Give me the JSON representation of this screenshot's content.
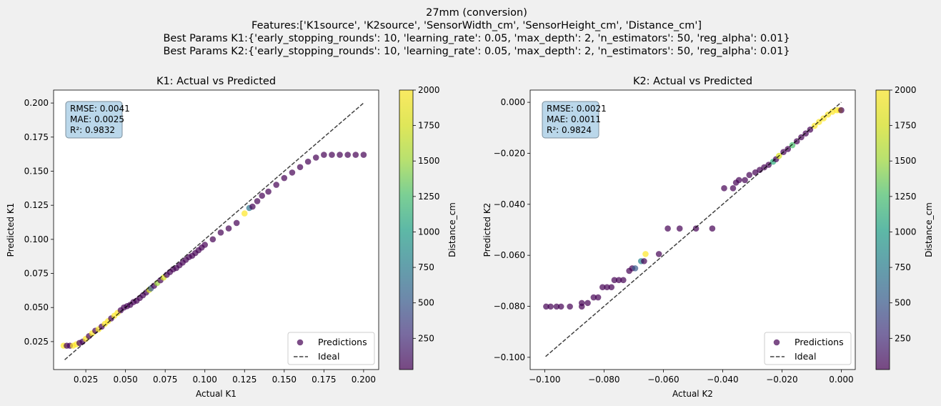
{
  "figure": {
    "suptitle_lines": [
      "27mm (conversion)",
      "Features:['K1source', 'K2source', 'SensorWidth_cm', 'SensorHeight_cm', 'Distance_cm']",
      "Best Params K1:{'early_stopping_rounds': 10, 'learning_rate': 0.05, 'max_depth': 2, 'n_estimators': 50, 'reg_alpha': 0.01}",
      "Best Params K2:{'early_stopping_rounds': 10, 'learning_rate': 0.05, 'max_depth': 2, 'n_estimators': 50, 'reg_alpha': 0.01}"
    ],
    "background": "#f0f0f0"
  },
  "chart_data": [
    {
      "type": "scatter",
      "title": "K1: Actual vs Predicted",
      "xlabel": "Actual K1",
      "ylabel": "Predicted K1",
      "xlim": [
        0.0047,
        0.2095
      ],
      "ylim": [
        0.0045,
        0.2095
      ],
      "xticks": [
        0.025,
        0.05,
        0.075,
        0.1,
        0.125,
        0.15,
        0.175,
        0.2
      ],
      "xtick_labels": [
        "0.025",
        "0.050",
        "0.075",
        "0.100",
        "0.125",
        "0.150",
        "0.175",
        "0.200"
      ],
      "yticks": [
        0.025,
        0.05,
        0.075,
        0.1,
        0.125,
        0.15,
        0.175,
        0.2
      ],
      "ytick_labels": [
        "0.025",
        "0.050",
        "0.075",
        "0.100",
        "0.125",
        "0.150",
        "0.175",
        "0.200"
      ],
      "metrics": [
        "RMSE: 0.0041",
        "MAE: 0.0025",
        "R²: 0.9832"
      ],
      "legend": {
        "position": "lower-right",
        "entries": [
          "Predictions",
          "Ideal"
        ]
      },
      "ideal_line": {
        "x": [
          0.0117,
          0.2
        ],
        "y": [
          0.0117,
          0.2
        ]
      },
      "colorbar": {
        "label": "Distance_cm",
        "range": [
          30,
          2000
        ],
        "ticks": [
          250,
          500,
          750,
          1000,
          1250,
          1500,
          1750,
          2000
        ],
        "colormap": "viridis"
      },
      "series": [
        {
          "name": "Predictions",
          "points": [
            [
              0.011,
              0.022,
              2000
            ],
            [
              0.013,
              0.022,
              30
            ],
            [
              0.015,
              0.022,
              30
            ],
            [
              0.017,
              0.022,
              2000
            ],
            [
              0.019,
              0.023,
              2000
            ],
            [
              0.021,
              0.024,
              30
            ],
            [
              0.023,
              0.025,
              30
            ],
            [
              0.025,
              0.027,
              2000
            ],
            [
              0.027,
              0.029,
              30
            ],
            [
              0.029,
              0.031,
              2000
            ],
            [
              0.031,
              0.033,
              30
            ],
            [
              0.033,
              0.034,
              2000
            ],
            [
              0.035,
              0.036,
              30
            ],
            [
              0.037,
              0.038,
              2000
            ],
            [
              0.039,
              0.04,
              2000
            ],
            [
              0.041,
              0.042,
              30
            ],
            [
              0.043,
              0.044,
              2000
            ],
            [
              0.045,
              0.046,
              2000
            ],
            [
              0.047,
              0.048,
              30
            ],
            [
              0.049,
              0.05,
              30
            ],
            [
              0.051,
              0.051,
              30
            ],
            [
              0.053,
              0.052,
              30
            ],
            [
              0.055,
              0.054,
              30
            ],
            [
              0.057,
              0.055,
              30
            ],
            [
              0.059,
              0.057,
              30
            ],
            [
              0.061,
              0.059,
              30
            ],
            [
              0.063,
              0.061,
              30
            ],
            [
              0.065,
              0.063,
              1750
            ],
            [
              0.066,
              0.064,
              500
            ],
            [
              0.068,
              0.066,
              30
            ],
            [
              0.07,
              0.068,
              1500
            ],
            [
              0.072,
              0.07,
              30
            ],
            [
              0.074,
              0.072,
              1750
            ],
            [
              0.076,
              0.074,
              30
            ],
            [
              0.078,
              0.076,
              30
            ],
            [
              0.08,
              0.078,
              30
            ],
            [
              0.082,
              0.079,
              30
            ],
            [
              0.084,
              0.081,
              30
            ],
            [
              0.086,
              0.083,
              30
            ],
            [
              0.088,
              0.085,
              30
            ],
            [
              0.09,
              0.087,
              30
            ],
            [
              0.092,
              0.088,
              30
            ],
            [
              0.094,
              0.09,
              30
            ],
            [
              0.096,
              0.092,
              30
            ],
            [
              0.098,
              0.094,
              30
            ],
            [
              0.1,
              0.096,
              30
            ],
            [
              0.105,
              0.1,
              30
            ],
            [
              0.11,
              0.105,
              30
            ],
            [
              0.115,
              0.108,
              30
            ],
            [
              0.12,
              0.112,
              30
            ],
            [
              0.125,
              0.119,
              2000
            ],
            [
              0.128,
              0.123,
              700
            ],
            [
              0.13,
              0.124,
              30
            ],
            [
              0.133,
              0.128,
              30
            ],
            [
              0.136,
              0.132,
              30
            ],
            [
              0.14,
              0.135,
              30
            ],
            [
              0.145,
              0.14,
              30
            ],
            [
              0.15,
              0.145,
              30
            ],
            [
              0.155,
              0.149,
              30
            ],
            [
              0.16,
              0.153,
              30
            ],
            [
              0.165,
              0.157,
              30
            ],
            [
              0.17,
              0.16,
              30
            ],
            [
              0.175,
              0.162,
              30
            ],
            [
              0.18,
              0.162,
              30
            ],
            [
              0.185,
              0.162,
              30
            ],
            [
              0.19,
              0.162,
              30
            ],
            [
              0.195,
              0.162,
              30
            ],
            [
              0.2,
              0.162,
              30
            ]
          ]
        }
      ]
    },
    {
      "type": "scatter",
      "title": "K2: Actual vs Predicted",
      "xlabel": "Actual K2",
      "ylabel": "Predicted K2",
      "xlim": [
        -0.1049,
        0.0047
      ],
      "ylim": [
        -0.1048,
        0.0048
      ],
      "xticks": [
        -0.1,
        -0.08,
        -0.06,
        -0.04,
        -0.02,
        0.0
      ],
      "xtick_labels": [
        "−0.100",
        "−0.080",
        "−0.060",
        "−0.040",
        "−0.020",
        "0.000"
      ],
      "yticks": [
        -0.1,
        -0.08,
        -0.06,
        -0.04,
        -0.02,
        0.0
      ],
      "ytick_labels": [
        "−0.100",
        "−0.080",
        "−0.060",
        "−0.040",
        "−0.020",
        "0.000"
      ],
      "metrics": [
        "RMSE: 0.0021",
        "MAE: 0.0011",
        "R²: 0.9824"
      ],
      "legend": {
        "position": "lower-right",
        "entries": [
          "Predictions",
          "Ideal"
        ]
      },
      "ideal_line": {
        "x": [
          -0.0997,
          0.0
        ],
        "y": [
          -0.0997,
          0.0
        ]
      },
      "colorbar": {
        "label": "Distance_cm",
        "range": [
          30,
          2000
        ],
        "ticks": [
          250,
          500,
          750,
          1000,
          1250,
          1500,
          1750,
          2000
        ],
        "colormap": "viridis"
      },
      "series": [
        {
          "name": "Predictions",
          "points": [
            [
              -0.0995,
              -0.0801,
              30
            ],
            [
              -0.098,
              -0.0801,
              30
            ],
            [
              -0.096,
              -0.0801,
              30
            ],
            [
              -0.0945,
              -0.0801,
              30
            ],
            [
              -0.0915,
              -0.0801,
              30
            ],
            [
              -0.0875,
              -0.0801,
              30
            ],
            [
              -0.0875,
              -0.0787,
              30
            ],
            [
              -0.0855,
              -0.0787,
              30
            ],
            [
              -0.0835,
              -0.0765,
              30
            ],
            [
              -0.082,
              -0.0765,
              30
            ],
            [
              -0.0805,
              -0.0725,
              30
            ],
            [
              -0.079,
              -0.0725,
              30
            ],
            [
              -0.0775,
              -0.0725,
              30
            ],
            [
              -0.0765,
              -0.0697,
              30
            ],
            [
              -0.075,
              -0.0697,
              30
            ],
            [
              -0.0735,
              -0.0697,
              30
            ],
            [
              -0.0715,
              -0.0661,
              30
            ],
            [
              -0.0705,
              -0.0651,
              30
            ],
            [
              -0.0695,
              -0.0651,
              500
            ],
            [
              -0.0675,
              -0.0623,
              800
            ],
            [
              -0.0665,
              -0.0623,
              30
            ],
            [
              -0.066,
              -0.0595,
              2000
            ],
            [
              -0.0615,
              -0.0595,
              30
            ],
            [
              -0.0585,
              -0.0495,
              30
            ],
            [
              -0.0545,
              -0.0495,
              30
            ],
            [
              -0.049,
              -0.0495,
              30
            ],
            [
              -0.0435,
              -0.0495,
              30
            ],
            [
              -0.0395,
              -0.0337,
              30
            ],
            [
              -0.0365,
              -0.0337,
              30
            ],
            [
              -0.0355,
              -0.0315,
              30
            ],
            [
              -0.0345,
              -0.0305,
              30
            ],
            [
              -0.0325,
              -0.0305,
              30
            ],
            [
              -0.031,
              -0.0285,
              30
            ],
            [
              -0.029,
              -0.0275,
              30
            ],
            [
              -0.0275,
              -0.0265,
              30
            ],
            [
              -0.026,
              -0.0255,
              30
            ],
            [
              -0.0245,
              -0.0245,
              30
            ],
            [
              -0.023,
              -0.0233,
              1100
            ],
            [
              -0.022,
              -0.0223,
              30
            ],
            [
              -0.021,
              -0.021,
              1750
            ],
            [
              -0.0195,
              -0.0195,
              30
            ],
            [
              -0.018,
              -0.0183,
              30
            ],
            [
              -0.0165,
              -0.0168,
              1250
            ],
            [
              -0.015,
              -0.0153,
              30
            ],
            [
              -0.0135,
              -0.0137,
              30
            ],
            [
              -0.012,
              -0.0122,
              30
            ],
            [
              -0.0105,
              -0.0107,
              30
            ],
            [
              -0.009,
              -0.0092,
              2000
            ],
            [
              -0.0075,
              -0.0077,
              2000
            ],
            [
              -0.006,
              -0.0063,
              2000
            ],
            [
              -0.0045,
              -0.0048,
              2000
            ],
            [
              -0.003,
              -0.0037,
              2000
            ],
            [
              -0.0015,
              -0.0031,
              2000
            ],
            [
              -0.0005,
              -0.0031,
              2000
            ],
            [
              0.0,
              -0.0031,
              30
            ]
          ]
        }
      ]
    }
  ]
}
